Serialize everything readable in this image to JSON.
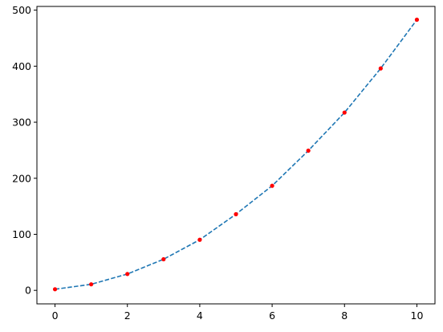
{
  "chart_data": {
    "type": "line",
    "title": "",
    "xlabel": "",
    "ylabel": "",
    "xlim": [
      -0.5,
      10.5
    ],
    "ylim": [
      -24.1,
      506.6
    ],
    "x_ticks": [
      0,
      2,
      4,
      6,
      8,
      10
    ],
    "y_ticks": [
      0,
      100,
      200,
      300,
      400,
      500
    ],
    "grid": false,
    "series": [
      {
        "line_style": "dashed",
        "line_color": "#1f77b4",
        "marker": "circle",
        "marker_color": "#ff0000",
        "x": [
          0,
          1,
          2,
          3,
          4,
          5,
          6,
          7,
          8,
          9,
          10
        ],
        "y": [
          2.0,
          10.8,
          29.2,
          55.5,
          90.3,
          135.8,
          186.6,
          249.3,
          317.2,
          396.0,
          482.9
        ]
      }
    ]
  }
}
